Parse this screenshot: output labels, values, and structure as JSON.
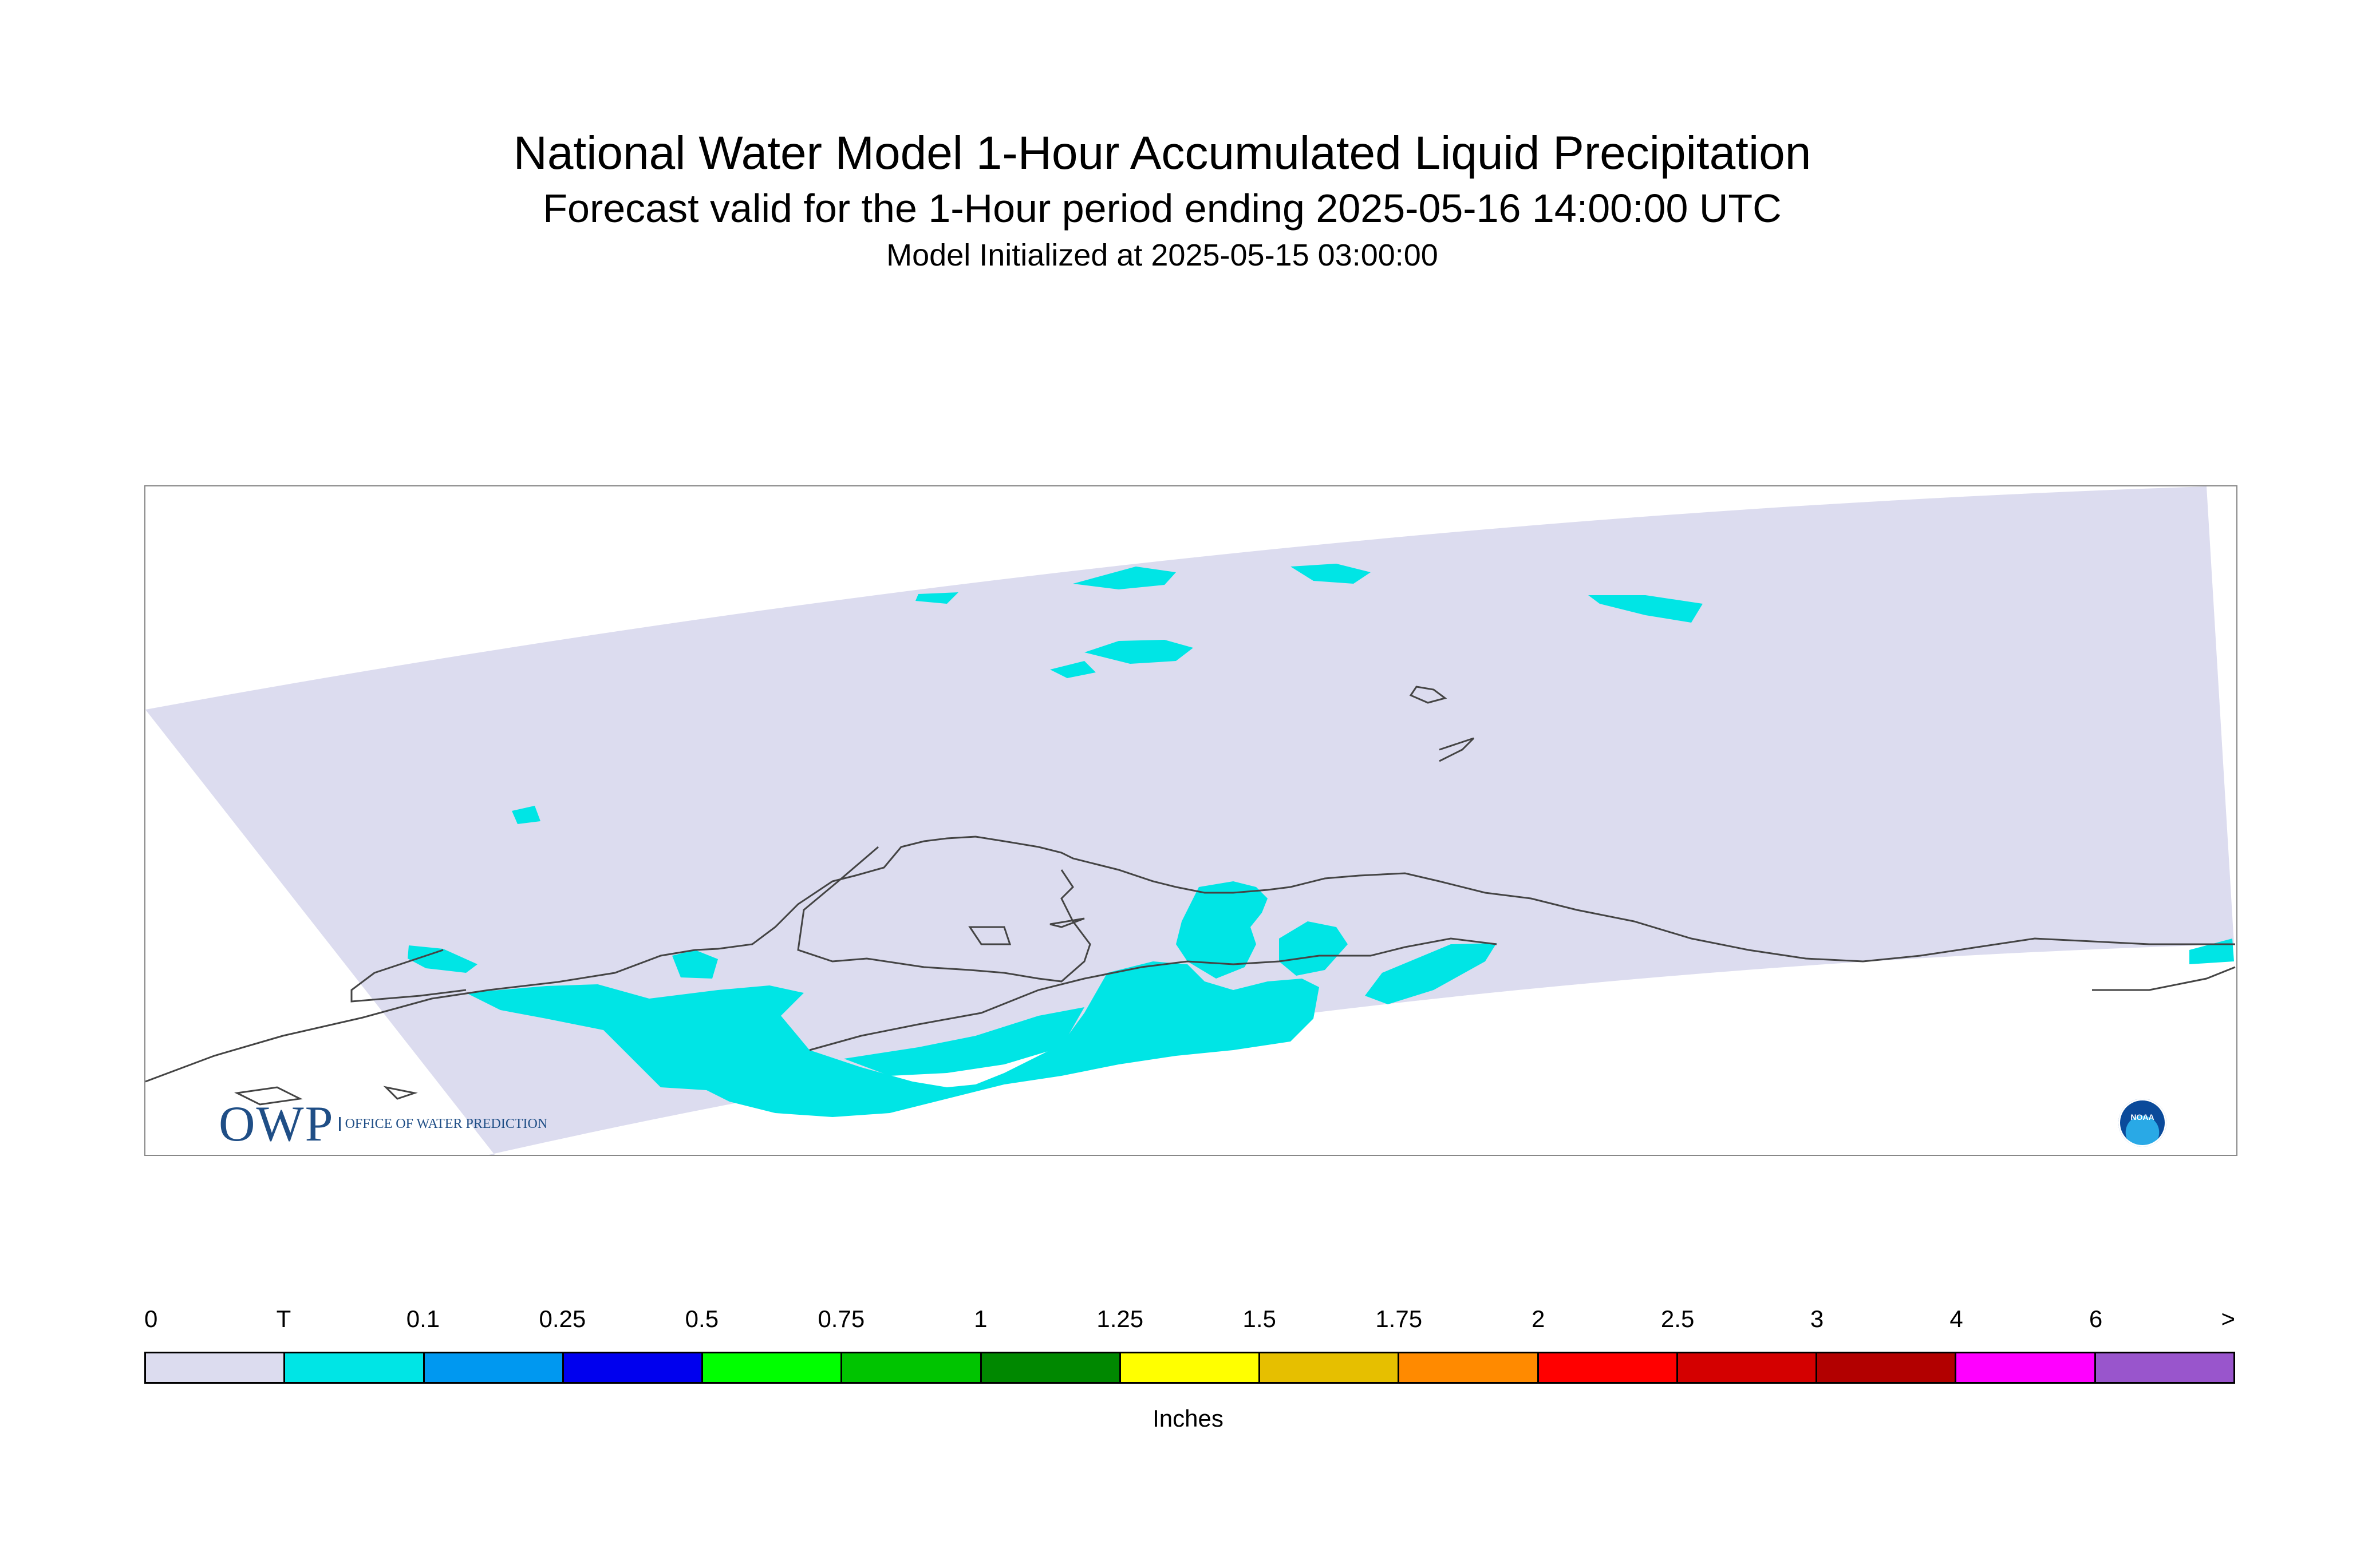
{
  "title": "National Water Model 1-Hour Accumulated Liquid Precipitation",
  "subtitle": "Forecast valid for the 1-Hour period ending 2025-05-16 14:00:00 UTC",
  "init_line": "Model Initialized at 2025-05-15 03:00:00",
  "logos": {
    "owp_mark": "OWP",
    "owp_text": "OFFICE OF WATER PREDICTION",
    "noaa_text": "NOAA"
  },
  "legend": {
    "ticks": [
      "0",
      "T",
      "0.1",
      "0.25",
      "0.5",
      "0.75",
      "1",
      "1.25",
      "1.5",
      "1.75",
      "2",
      "2.5",
      "3",
      "4",
      "6",
      ">"
    ],
    "colors": [
      "#dcdcef",
      "#00e5e5",
      "#0098f0",
      "#0000ee",
      "#00ff00",
      "#00c400",
      "#008800",
      "#ffff00",
      "#e6bf00",
      "#ff8a00",
      "#ff0000",
      "#d40000",
      "#b20000",
      "#ff00ff",
      "#9955cc"
    ],
    "units": "Inches"
  },
  "map": {
    "domain_color": "#dcdcef",
    "precip_color": "#00e5e5",
    "coast_color": "#444444"
  }
}
